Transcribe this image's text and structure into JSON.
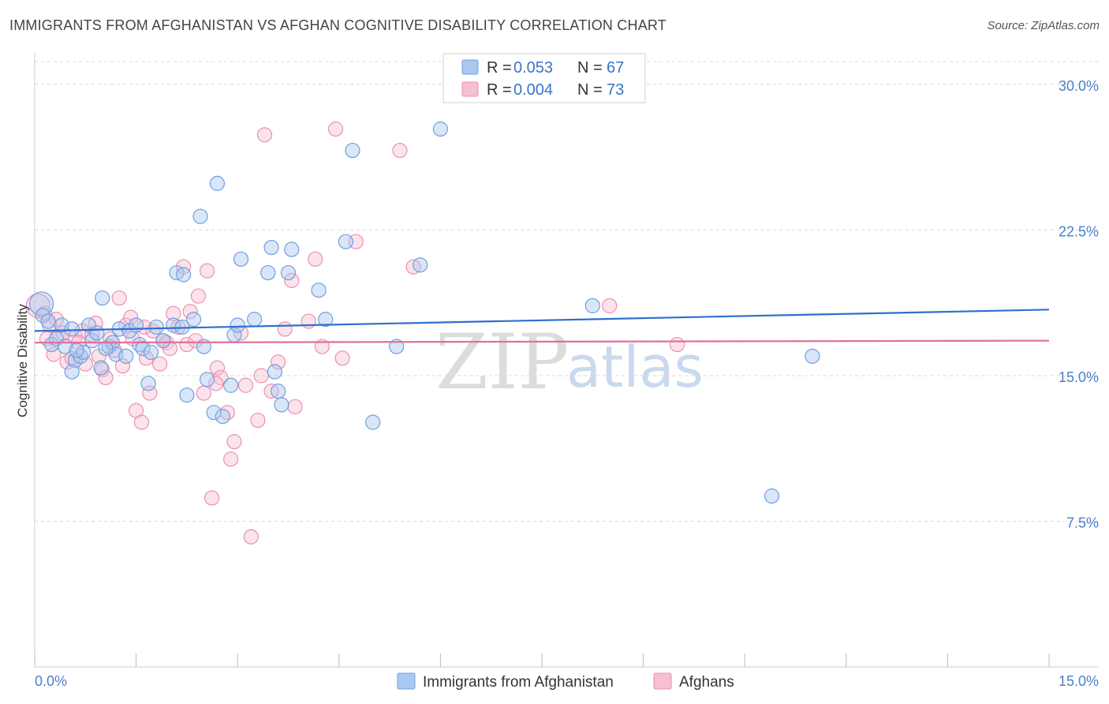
{
  "title": "IMMIGRANTS FROM AFGHANISTAN VS AFGHAN COGNITIVE DISABILITY CORRELATION CHART",
  "source": "Source: ZipAtlas.com",
  "watermark": {
    "zip": "ZIP",
    "atlas": "atlas"
  },
  "colors": {
    "blue": "#6f9fe0",
    "blue_fill": "#aac8f0",
    "blue_line": "#2f6fd0",
    "pink": "#ec8fb0",
    "pink_fill": "#f6c0d3",
    "pink_line": "#e0719a",
    "grid": "#d8d8d8",
    "axis_text": "#4a7fc8"
  },
  "legend": {
    "blue": {
      "r_label": "R =",
      "r_value": "0.053",
      "n_label": "N =",
      "n_value": "67"
    },
    "pink": {
      "r_label": "R =",
      "r_value": "0.004",
      "n_label": "N =",
      "n_value": "73"
    }
  },
  "chart_data": {
    "type": "scatter",
    "title": "IMMIGRANTS FROM AFGHANISTAN VS AFGHAN COGNITIVE DISABILITY CORRELATION CHART",
    "xlabel": "",
    "ylabel": "Cognitive Disability",
    "xlim": [
      0,
      15
    ],
    "ylim": [
      0,
      31.5
    ],
    "x_tick_labels": [
      "0.0%",
      "15.0%"
    ],
    "y_ticks": [
      7.5,
      15.0,
      22.5,
      30.0
    ],
    "y_tick_labels": [
      "7.5%",
      "15.0%",
      "22.5%",
      "30.0%"
    ],
    "series": [
      {
        "name": "Immigrants from Afghanistan",
        "color": "#6f9fe0",
        "trend": {
          "x": [
            0,
            15
          ],
          "y": [
            17.3,
            18.4
          ]
        },
        "points": [
          [
            0.1,
            18.7
          ],
          [
            0.12,
            18.1
          ],
          [
            0.2,
            17.8
          ],
          [
            0.25,
            16.6
          ],
          [
            0.32,
            16.9
          ],
          [
            0.4,
            17.6
          ],
          [
            0.45,
            16.5
          ],
          [
            0.55,
            15.2
          ],
          [
            0.6,
            15.8
          ],
          [
            0.68,
            16.0
          ],
          [
            0.72,
            16.2
          ],
          [
            0.8,
            17.6
          ],
          [
            0.85,
            16.8
          ],
          [
            0.92,
            17.2
          ],
          [
            0.98,
            15.4
          ],
          [
            1.0,
            19.0
          ],
          [
            1.1,
            16.5
          ],
          [
            1.15,
            16.7
          ],
          [
            1.2,
            16.1
          ],
          [
            1.25,
            17.4
          ],
          [
            1.35,
            16.0
          ],
          [
            1.4,
            17.3
          ],
          [
            1.5,
            17.6
          ],
          [
            1.55,
            16.6
          ],
          [
            1.6,
            16.4
          ],
          [
            1.68,
            14.6
          ],
          [
            1.72,
            16.2
          ],
          [
            1.8,
            17.5
          ],
          [
            1.9,
            16.8
          ],
          [
            2.05,
            17.6
          ],
          [
            2.1,
            20.3
          ],
          [
            2.2,
            20.2
          ],
          [
            2.25,
            14.0
          ],
          [
            2.35,
            17.9
          ],
          [
            2.45,
            23.2
          ],
          [
            2.5,
            16.5
          ],
          [
            2.55,
            14.8
          ],
          [
            2.65,
            13.1
          ],
          [
            2.7,
            24.9
          ],
          [
            2.78,
            12.9
          ],
          [
            2.9,
            14.5
          ],
          [
            2.95,
            17.1
          ],
          [
            3.0,
            17.6
          ],
          [
            3.05,
            21.0
          ],
          [
            3.25,
            17.9
          ],
          [
            3.45,
            20.3
          ],
          [
            3.5,
            21.6
          ],
          [
            3.55,
            15.2
          ],
          [
            3.6,
            14.2
          ],
          [
            3.65,
            13.5
          ],
          [
            3.75,
            20.3
          ],
          [
            3.8,
            21.5
          ],
          [
            4.2,
            19.4
          ],
          [
            4.3,
            17.9
          ],
          [
            4.6,
            21.9
          ],
          [
            4.7,
            26.6
          ],
          [
            5.0,
            12.6
          ],
          [
            5.35,
            16.5
          ],
          [
            5.7,
            20.7
          ],
          [
            6.0,
            27.7
          ],
          [
            8.25,
            18.6
          ],
          [
            11.5,
            16.0
          ],
          [
            10.9,
            8.8
          ],
          [
            0.55,
            17.4
          ],
          [
            0.62,
            16.3
          ],
          [
            1.05,
            16.4
          ],
          [
            2.18,
            17.5
          ]
        ]
      },
      {
        "name": "Afghans",
        "color": "#ec8fb0",
        "trend": {
          "x": [
            0,
            15
          ],
          "y": [
            16.7,
            16.8
          ]
        },
        "points": [
          [
            0.05,
            18.6
          ],
          [
            0.15,
            18.2
          ],
          [
            0.22,
            17.6
          ],
          [
            0.28,
            16.1
          ],
          [
            0.35,
            17.0
          ],
          [
            0.42,
            17.2
          ],
          [
            0.48,
            15.7
          ],
          [
            0.55,
            15.9
          ],
          [
            0.6,
            17.0
          ],
          [
            0.7,
            17.3
          ],
          [
            0.75,
            15.6
          ],
          [
            0.85,
            17.1
          ],
          [
            0.9,
            17.7
          ],
          [
            0.95,
            16.0
          ],
          [
            1.0,
            15.3
          ],
          [
            1.05,
            14.9
          ],
          [
            1.12,
            16.9
          ],
          [
            1.18,
            16.3
          ],
          [
            1.25,
            19.0
          ],
          [
            1.3,
            15.5
          ],
          [
            1.35,
            17.6
          ],
          [
            1.42,
            18.0
          ],
          [
            1.5,
            13.2
          ],
          [
            1.58,
            12.6
          ],
          [
            1.65,
            15.9
          ],
          [
            1.7,
            14.1
          ],
          [
            1.75,
            17.3
          ],
          [
            1.85,
            15.6
          ],
          [
            1.9,
            16.8
          ],
          [
            1.95,
            16.7
          ],
          [
            2.05,
            18.2
          ],
          [
            2.12,
            17.5
          ],
          [
            2.2,
            20.6
          ],
          [
            2.25,
            16.6
          ],
          [
            2.3,
            18.3
          ],
          [
            2.38,
            16.8
          ],
          [
            2.42,
            19.1
          ],
          [
            2.5,
            14.1
          ],
          [
            2.55,
            20.4
          ],
          [
            2.62,
            8.7
          ],
          [
            2.7,
            15.4
          ],
          [
            2.75,
            14.9
          ],
          [
            2.85,
            13.1
          ],
          [
            2.9,
            10.7
          ],
          [
            2.95,
            11.6
          ],
          [
            3.05,
            17.2
          ],
          [
            3.12,
            14.5
          ],
          [
            3.2,
            6.7
          ],
          [
            3.3,
            12.7
          ],
          [
            3.4,
            27.4
          ],
          [
            3.5,
            14.2
          ],
          [
            3.6,
            15.7
          ],
          [
            3.7,
            17.4
          ],
          [
            3.8,
            19.9
          ],
          [
            3.85,
            13.4
          ],
          [
            4.15,
            21.0
          ],
          [
            4.25,
            16.5
          ],
          [
            4.45,
            27.7
          ],
          [
            4.55,
            15.9
          ],
          [
            4.75,
            21.9
          ],
          [
            5.4,
            26.6
          ],
          [
            5.6,
            20.6
          ],
          [
            8.5,
            18.6
          ],
          [
            9.5,
            16.6
          ],
          [
            0.32,
            17.9
          ],
          [
            0.65,
            16.7
          ],
          [
            1.45,
            16.9
          ],
          [
            2.0,
            16.4
          ],
          [
            2.68,
            14.6
          ],
          [
            3.35,
            15.0
          ],
          [
            4.05,
            17.8
          ],
          [
            0.18,
            16.9
          ],
          [
            1.62,
            17.5
          ]
        ]
      }
    ]
  },
  "bottom_legend": [
    {
      "label": "Immigrants from Afghanistan"
    },
    {
      "label": "Afghans"
    }
  ]
}
